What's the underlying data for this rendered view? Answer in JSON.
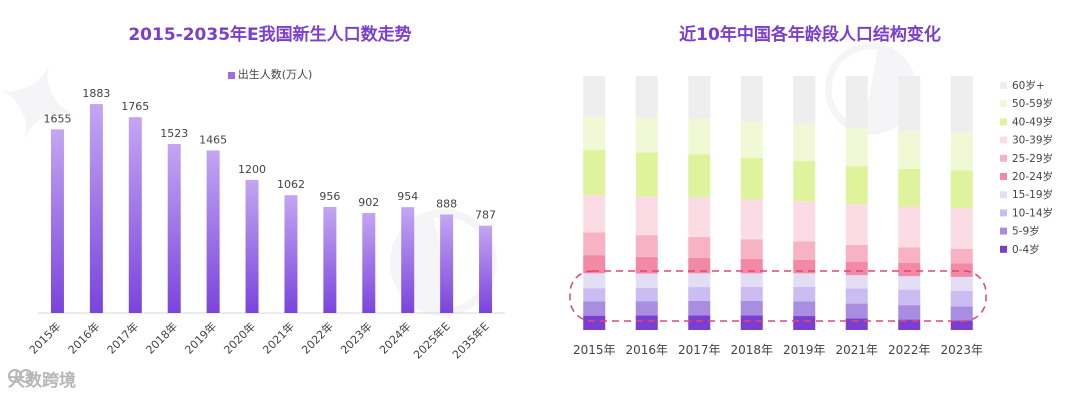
{
  "brand": {
    "text": "大数跨境",
    "logo_icon": "big-data-logo-icon"
  },
  "chart_data": [
    {
      "type": "bar",
      "title": "2015-2035年E我国新生人口数走势",
      "legend": [
        "出生人数(万人)"
      ],
      "legend_position": "top",
      "categories": [
        "2015年",
        "2016年",
        "2017年",
        "2018年",
        "2019年",
        "2020年",
        "2021年",
        "2022年",
        "2023年",
        "2024年",
        "2025年E",
        "2035年E"
      ],
      "series": [
        {
          "name": "出生人数(万人)",
          "values": [
            1655,
            1883,
            1765,
            1523,
            1465,
            1200,
            1062,
            956,
            902,
            954,
            888,
            787
          ]
        }
      ],
      "ylim": [
        0,
        2100
      ],
      "grid": false,
      "data_labels": true,
      "colors": {
        "bar_top": "#c3a6f2",
        "bar_bottom": "#7a44dd"
      }
    },
    {
      "type": "bar",
      "stacked": true,
      "normalized": true,
      "title": "近10年中国各年龄段人口结构变化",
      "legend_position": "right",
      "categories": [
        "2015年",
        "2016年",
        "2017年",
        "2018年",
        "2019年",
        "2021年",
        "2022年",
        "2023年"
      ],
      "series": [
        {
          "name": "0-4岁",
          "color": "#7a3fd0",
          "values": [
            0.057,
            0.058,
            0.058,
            0.058,
            0.055,
            0.046,
            0.041,
            0.038
          ]
        },
        {
          "name": "5-9岁",
          "color": "#a88de0",
          "values": [
            0.057,
            0.056,
            0.057,
            0.057,
            0.058,
            0.058,
            0.057,
            0.055
          ]
        },
        {
          "name": "10-14岁",
          "color": "#cbbcf2",
          "values": [
            0.052,
            0.053,
            0.054,
            0.055,
            0.057,
            0.06,
            0.061,
            0.061
          ]
        },
        {
          "name": "15-19岁",
          "color": "#e3ddf6",
          "values": [
            0.059,
            0.056,
            0.054,
            0.053,
            0.053,
            0.052,
            0.053,
            0.055
          ]
        },
        {
          "name": "20-24岁",
          "color": "#f28aa6",
          "values": [
            0.072,
            0.066,
            0.061,
            0.057,
            0.053,
            0.053,
            0.052,
            0.053
          ]
        },
        {
          "name": "25-29岁",
          "color": "#f7b2c3",
          "values": [
            0.09,
            0.086,
            0.082,
            0.077,
            0.073,
            0.066,
            0.061,
            0.058
          ]
        },
        {
          "name": "30-39岁",
          "color": "#fcdce4",
          "values": [
            0.149,
            0.153,
            0.156,
            0.157,
            0.158,
            0.16,
            0.161,
            0.16
          ]
        },
        {
          "name": "40-49岁",
          "color": "#dff29c",
          "values": [
            0.178,
            0.174,
            0.17,
            0.164,
            0.158,
            0.15,
            0.148,
            0.148
          ]
        },
        {
          "name": "50-59岁",
          "color": "#f1f8d6",
          "values": [
            0.132,
            0.136,
            0.139,
            0.143,
            0.147,
            0.149,
            0.149,
            0.15
          ]
        },
        {
          "name": "60岁+",
          "color": "#eeeeee",
          "values": [
            0.162,
            0.166,
            0.169,
            0.179,
            0.188,
            0.206,
            0.217,
            0.222
          ]
        }
      ],
      "ylim": [
        0,
        1
      ],
      "grid": false,
      "annotations": [
        {
          "type": "dashed-rounded-outline",
          "color": "#e0457a",
          "highlights": [
            "0-4岁",
            "5-9岁",
            "10-14岁",
            "15-19岁"
          ]
        }
      ]
    }
  ]
}
